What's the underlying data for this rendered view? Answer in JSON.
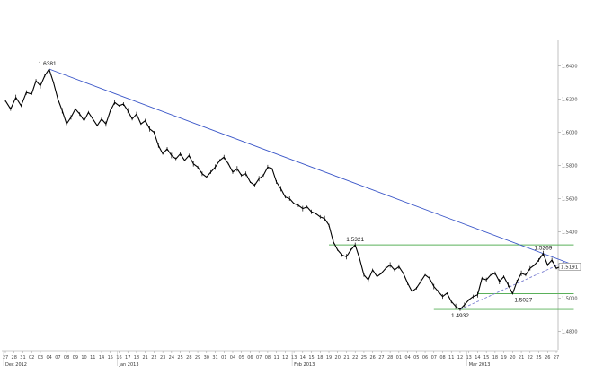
{
  "chart_data": {
    "type": "line",
    "title": "",
    "xlabel": "",
    "ylabel": "",
    "ylim": [
      1.47,
      1.65
    ],
    "yticks": [
      1.48,
      1.5,
      1.52,
      1.54,
      1.56,
      1.58,
      1.6,
      1.62,
      1.64
    ],
    "ytick_labels": [
      "1.4800",
      "1.5000",
      "1.5200",
      "1.5400",
      "1.5600",
      "1.5800",
      "1.6000",
      "1.6200",
      "1.6400"
    ],
    "day_labels": [
      "27",
      "28",
      "31",
      "02",
      "03",
      "04",
      "07",
      "08",
      "09",
      "10",
      "11",
      "14",
      "15",
      "16",
      "17",
      "18",
      "21",
      "22",
      "23",
      "24",
      "25",
      "28",
      "29",
      "30",
      "31",
      "01",
      "04",
      "05",
      "06",
      "07",
      "08",
      "11",
      "12",
      "13",
      "14",
      "15",
      "18",
      "19",
      "20",
      "21",
      "22",
      "25",
      "26",
      "27",
      "28",
      "01",
      "04",
      "05",
      "06",
      "07",
      "08",
      "11",
      "12",
      "13",
      "14",
      "15",
      "18",
      "19",
      "20",
      "21",
      "22",
      "25",
      "26",
      "27"
    ],
    "month_labels": [
      {
        "label": "Dec 2012",
        "day_index": 0
      },
      {
        "label": "Jan 2013",
        "day_index": 13
      },
      {
        "label": "Feb 2013",
        "day_index": 33
      },
      {
        "label": "Mar 2013",
        "day_index": 53
      }
    ],
    "series": [
      {
        "color": "#000000",
        "points": [
          [
            0,
            1.619
          ],
          [
            0.6,
            1.614
          ],
          [
            1.2,
            1.621
          ],
          [
            1.8,
            1.616
          ],
          [
            2.4,
            1.624
          ],
          [
            3,
            1.623
          ],
          [
            3.5,
            1.631
          ],
          [
            4,
            1.628
          ],
          [
            4.5,
            1.634
          ],
          [
            5,
            1.6381
          ],
          [
            5.5,
            1.63
          ],
          [
            6,
            1.62
          ],
          [
            6.5,
            1.613
          ],
          [
            7,
            1.605
          ],
          [
            7.5,
            1.609
          ],
          [
            8,
            1.614
          ],
          [
            8.5,
            1.611
          ],
          [
            9,
            1.607
          ],
          [
            9.5,
            1.612
          ],
          [
            10,
            1.608
          ],
          [
            10.5,
            1.604
          ],
          [
            11,
            1.608
          ],
          [
            11.5,
            1.605
          ],
          [
            12,
            1.613
          ],
          [
            12.5,
            1.618
          ],
          [
            13,
            1.616
          ],
          [
            13.5,
            1.617
          ],
          [
            14,
            1.613
          ],
          [
            14.5,
            1.608
          ],
          [
            15,
            1.611
          ],
          [
            15.5,
            1.605
          ],
          [
            16,
            1.607
          ],
          [
            16.5,
            1.602
          ],
          [
            17,
            1.6
          ],
          [
            17.5,
            1.592
          ],
          [
            18,
            1.587
          ],
          [
            18.5,
            1.59
          ],
          [
            19,
            1.586
          ],
          [
            19.5,
            1.584
          ],
          [
            20,
            1.587
          ],
          [
            20.5,
            1.583
          ],
          [
            21,
            1.586
          ],
          [
            21.5,
            1.581
          ],
          [
            22,
            1.579
          ],
          [
            22.5,
            1.575
          ],
          [
            23,
            1.573
          ],
          [
            23.5,
            1.576
          ],
          [
            24,
            1.579
          ],
          [
            24.5,
            1.583
          ],
          [
            25,
            1.585
          ],
          [
            25.5,
            1.581
          ],
          [
            26,
            1.576
          ],
          [
            26.5,
            1.578
          ],
          [
            27,
            1.574
          ],
          [
            27.5,
            1.575
          ],
          [
            28,
            1.57
          ],
          [
            28.5,
            1.568
          ],
          [
            29,
            1.572
          ],
          [
            29.5,
            1.574
          ],
          [
            30,
            1.579
          ],
          [
            30.5,
            1.578
          ],
          [
            31,
            1.57
          ],
          [
            31.5,
            1.566
          ],
          [
            32,
            1.561
          ],
          [
            32.5,
            1.56
          ],
          [
            33,
            1.557
          ],
          [
            33.5,
            1.556
          ],
          [
            34,
            1.554
          ],
          [
            34.5,
            1.555
          ],
          [
            35,
            1.552
          ],
          [
            35.5,
            1.551
          ],
          [
            36,
            1.549
          ],
          [
            36.5,
            1.548
          ],
          [
            37,
            1.544
          ],
          [
            37.5,
            1.534
          ],
          [
            38,
            1.529
          ],
          [
            38.5,
            1.526
          ],
          [
            39,
            1.525
          ],
          [
            39.5,
            1.529
          ],
          [
            40,
            1.5321
          ],
          [
            40.5,
            1.524
          ],
          [
            41,
            1.514
          ],
          [
            41.5,
            1.511
          ],
          [
            42,
            1.517
          ],
          [
            42.5,
            1.513
          ],
          [
            43,
            1.515
          ],
          [
            43.5,
            1.518
          ],
          [
            44,
            1.52
          ],
          [
            44.5,
            1.517
          ],
          [
            45,
            1.519
          ],
          [
            45.5,
            1.515
          ],
          [
            46,
            1.509
          ],
          [
            46.5,
            1.504
          ],
          [
            47,
            1.506
          ],
          [
            47.5,
            1.51
          ],
          [
            48,
            1.514
          ],
          [
            48.5,
            1.512
          ],
          [
            49,
            1.507
          ],
          [
            49.5,
            1.504
          ],
          [
            50,
            1.501
          ],
          [
            50.5,
            1.503
          ],
          [
            51,
            1.498
          ],
          [
            51.5,
            1.495
          ],
          [
            52,
            1.4932
          ],
          [
            52.5,
            1.496
          ],
          [
            53,
            1.499
          ],
          [
            53.5,
            1.501
          ],
          [
            54,
            1.502
          ],
          [
            54.5,
            1.512
          ],
          [
            55,
            1.511
          ],
          [
            55.5,
            1.514
          ],
          [
            56,
            1.515
          ],
          [
            56.5,
            1.51
          ],
          [
            57,
            1.513
          ],
          [
            57.5,
            1.508
          ],
          [
            58,
            1.5027
          ],
          [
            58.5,
            1.51
          ],
          [
            59,
            1.515
          ],
          [
            59.5,
            1.514
          ],
          [
            60,
            1.518
          ],
          [
            60.5,
            1.52
          ],
          [
            61,
            1.523
          ],
          [
            61.5,
            1.5269
          ],
          [
            62,
            1.52
          ],
          [
            62.5,
            1.523
          ],
          [
            63,
            1.518
          ],
          [
            63.5,
            1.519
          ]
        ]
      }
    ],
    "trendlines": [
      {
        "name": "resistance",
        "color": "#3a56c8",
        "dash": false,
        "from": [
          5,
          1.6381
        ],
        "to": [
          65,
          1.52
        ]
      },
      {
        "name": "support",
        "color": "#7b7fd1",
        "dash": true,
        "from": [
          52,
          1.4932
        ],
        "to": [
          64,
          1.522
        ]
      }
    ],
    "horizontal_lines": [
      {
        "y": 1.5321,
        "x0": 37,
        "x1": 65,
        "color": "#5ab05a"
      },
      {
        "y": 1.5027,
        "x0": 54,
        "x1": 65,
        "color": "#5ab05a"
      },
      {
        "y": 1.4932,
        "x0": 49,
        "x1": 65,
        "color": "#5ab05a"
      }
    ],
    "annotations": [
      {
        "text": "1.6381",
        "x": 5,
        "y": 1.6381,
        "place": "above-left"
      },
      {
        "text": "1.5321",
        "x": 40,
        "y": 1.5321,
        "place": "above"
      },
      {
        "text": "1.5269",
        "x": 61.5,
        "y": 1.5269,
        "place": "above"
      },
      {
        "text": "1.5027",
        "x": 58,
        "y": 1.5027,
        "place": "below-right"
      },
      {
        "text": "1.4932",
        "x": 52,
        "y": 1.4932,
        "place": "below"
      }
    ],
    "last_price": {
      "value": 1.519,
      "label": "1.5191"
    },
    "grid": false
  }
}
